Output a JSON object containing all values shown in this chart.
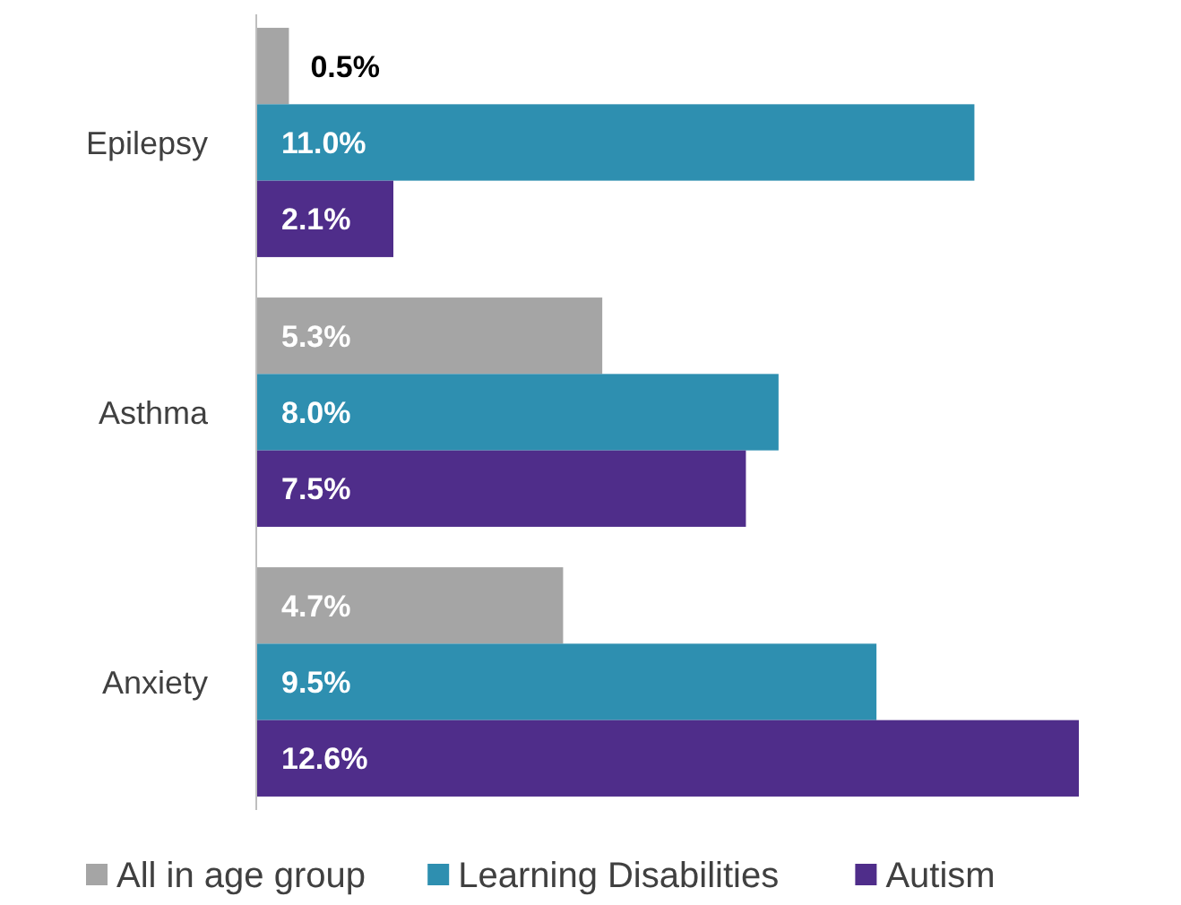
{
  "chart_data": {
    "type": "bar",
    "orientation": "horizontal",
    "categories": [
      "Epilepsy",
      "Asthma",
      "Anxiety"
    ],
    "series": [
      {
        "name": "All in age group",
        "color": "#a5a5a5",
        "values": [
          0.5,
          5.3,
          4.7
        ],
        "value_labels": [
          "0.5%",
          "5.3%",
          "4.7%"
        ]
      },
      {
        "name": "Learning Disabilities",
        "color": "#2e8fb0",
        "values": [
          11.0,
          8.0,
          9.5
        ],
        "value_labels": [
          "11.0%",
          "8.0%",
          "9.5%"
        ]
      },
      {
        "name": "Autism",
        "color": "#4f2d8a",
        "values": [
          2.1,
          7.5,
          12.6
        ],
        "value_labels": [
          "2.1%",
          "7.5%",
          "12.6%"
        ]
      }
    ],
    "legend": "bottom"
  }
}
